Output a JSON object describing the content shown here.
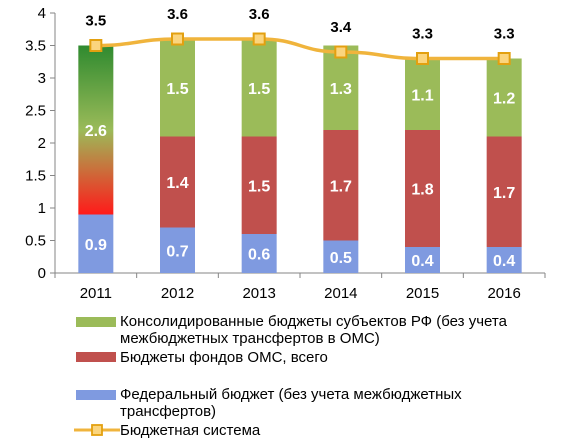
{
  "chart_data": {
    "type": "bar",
    "stacked": true,
    "categories": [
      "2011",
      "2012",
      "2013",
      "2014",
      "2015",
      "2016"
    ],
    "ylim": [
      0,
      4
    ],
    "yticks": [
      "0",
      "0.5",
      "1",
      "1.5",
      "2",
      "2.5",
      "3",
      "3.5",
      "4"
    ],
    "grid": false,
    "legend_placement": "bottom",
    "series": [
      {
        "name": "Федеральный бюджет (без учета межбюджетных трансфертов)",
        "kind": "bar",
        "color": "#7f9ae0",
        "values": [
          0.9,
          0.7,
          0.6,
          0.5,
          0.4,
          0.4
        ],
        "labels": [
          "0.9",
          "0.7",
          "0.6",
          "0.5",
          "0.4",
          "0.4"
        ]
      },
      {
        "name": "Бюджеты фондов ОМС, всего",
        "kind": "bar",
        "color": "#c0504d",
        "values": [
          null,
          1.4,
          1.5,
          1.7,
          1.8,
          1.7
        ],
        "labels": [
          "",
          "1.4",
          "1.5",
          "1.7",
          "1.8",
          "1.7"
        ]
      },
      {
        "name": "Консолидированные бюджеты субъектов РФ  (без учета межбюджетных трансфертов в ОМС)",
        "kind": "bar",
        "color": "#9bbb59",
        "values": [
          2.6,
          1.5,
          1.5,
          1.3,
          1.1,
          1.2
        ],
        "labels": [
          "2.6",
          "1.5",
          "1.5",
          "1.3",
          "1.1",
          "1.2"
        ]
      },
      {
        "name": "Бюджетная система",
        "kind": "line",
        "color": "#f0b43c",
        "marker_fill": "#fbd57e",
        "marker_stroke": "#e3a010",
        "values": [
          3.5,
          3.6,
          3.6,
          3.4,
          3.3,
          3.3
        ],
        "labels": [
          "3.5",
          "3.6",
          "3.6",
          "3.4",
          "3.3",
          "3.3"
        ]
      }
    ],
    "special": {
      "category": "2011",
      "gradient_from": "#ff1a1a",
      "gradient_to": "#9bbb59",
      "gradient_top_color": "#2f8a2f"
    }
  },
  "legend": {
    "items": [
      {
        "label": "Консолидированные бюджеты субъектов РФ  (без учета межбюджетных трансфертов в ОМС)",
        "color": "#9bbb59"
      },
      {
        "label": "Бюджеты фондов ОМС, всего",
        "color": "#c0504d"
      },
      {
        "label": "Федеральный бюджет (без учета межбюджетных трансфертов)",
        "color": "#7f9ae0"
      },
      {
        "label": "Бюджетная система",
        "color": "#f0b43c"
      }
    ]
  }
}
